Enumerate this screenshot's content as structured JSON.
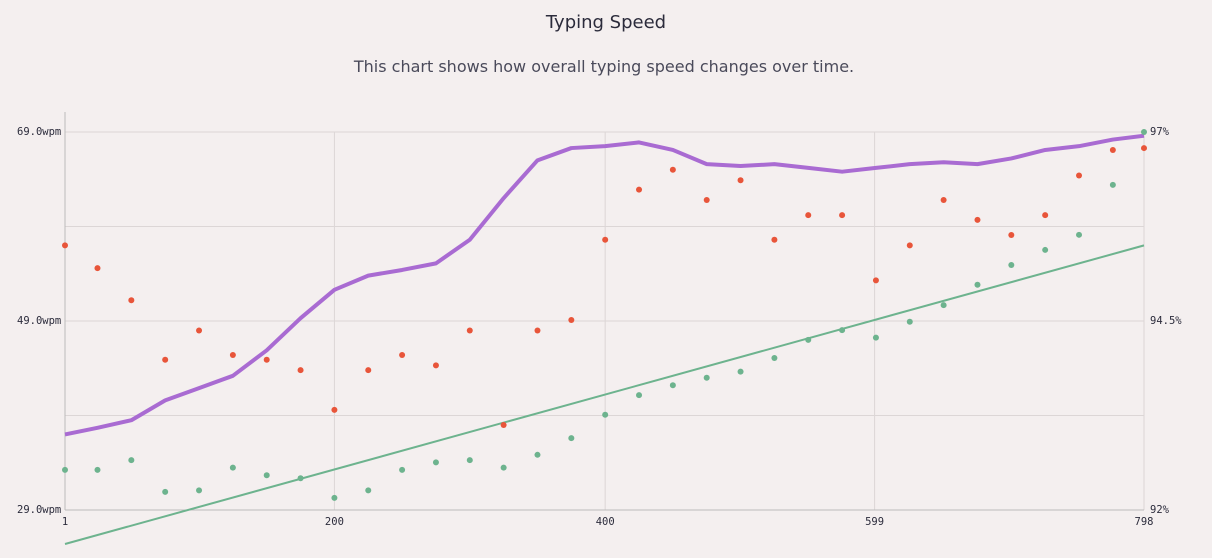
{
  "chart_data": {
    "type": "line",
    "title": "Typing Speed",
    "subtitle": "This chart shows how overall typing speed changes over time.",
    "x": [
      1,
      25,
      50,
      75,
      100,
      125,
      150,
      175,
      200,
      225,
      250,
      275,
      300,
      325,
      350,
      375,
      400,
      425,
      450,
      475,
      500,
      525,
      550,
      575,
      600,
      625,
      650,
      675,
      700,
      725,
      750,
      775,
      798
    ],
    "xlim": [
      1,
      798
    ],
    "xticks": [
      1,
      200,
      400,
      599,
      798
    ],
    "ylim": [
      29,
      69
    ],
    "yticks": [
      {
        "value": 29,
        "label": "29.0wpm"
      },
      {
        "value": 49,
        "label": "49.0wpm"
      },
      {
        "value": 69,
        "label": "69.0wpm"
      }
    ],
    "y_grid_extra": [
      39,
      59
    ],
    "y2lim": [
      92,
      97
    ],
    "y2ticks": [
      {
        "value": 92,
        "label": "92%"
      },
      {
        "value": 94.5,
        "label": "94.5%"
      },
      {
        "value": 97,
        "label": "97%"
      }
    ],
    "grid": true,
    "series": [
      {
        "color": "#a96bd2",
        "style": "line",
        "values": [
          37.0,
          37.7,
          38.5,
          40.6,
          41.9,
          43.2,
          45.9,
          49.3,
          52.3,
          53.8,
          54.4,
          55.1,
          57.6,
          62.0,
          66.0,
          67.3,
          67.5,
          67.9,
          67.1,
          65.6,
          65.4,
          65.6,
          65.2,
          64.8,
          65.2,
          65.6,
          65.8,
          65.6,
          66.2,
          67.1,
          67.5,
          68.2,
          68.6
        ]
      },
      {
        "color": "#e8553a",
        "style": "markers",
        "values": [
          57.0,
          54.6,
          51.2,
          44.9,
          48.0,
          45.4,
          44.9,
          43.8,
          39.6,
          43.8,
          45.4,
          44.3,
          48.0,
          38.0,
          48.0,
          49.1,
          57.6,
          62.9,
          65.0,
          61.8,
          63.9,
          57.6,
          60.2,
          60.2,
          53.3,
          57.0,
          61.8,
          59.7,
          58.1,
          60.2,
          64.4,
          67.1,
          67.3
        ]
      },
      {
        "color": "#6db38e",
        "style": "markers",
        "axis": "y2",
        "values": [
          92.53,
          92.53,
          92.66,
          92.24,
          92.26,
          92.56,
          92.46,
          92.42,
          92.16,
          92.26,
          92.53,
          92.63,
          92.66,
          92.56,
          92.73,
          92.95,
          93.26,
          93.52,
          93.65,
          93.75,
          93.83,
          94.01,
          94.25,
          94.38,
          94.28,
          94.49,
          94.71,
          94.98,
          95.24,
          95.44,
          95.64,
          96.3,
          97.0
        ]
      }
    ],
    "trendline": {
      "color": "#6db38e",
      "axis": "y2",
      "x": [
        1,
        798
      ],
      "values": [
        91.55,
        95.5
      ]
    }
  }
}
